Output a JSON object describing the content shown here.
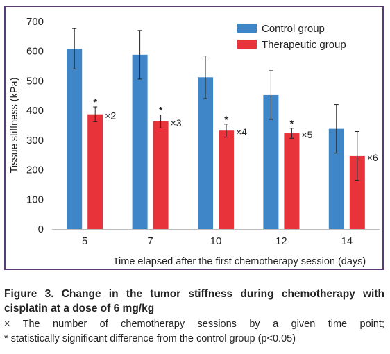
{
  "chart_data": {
    "type": "bar",
    "xlabel": "Time elapsed after the first chemotherapy session (days)",
    "ylabel": "Tissue stiffness (kPa)",
    "ylim": [
      0,
      700
    ],
    "yticks": [
      "0",
      "100",
      "200",
      "300",
      "400",
      "500",
      "600",
      "700"
    ],
    "categories": [
      "5",
      "7",
      "10",
      "12",
      "14"
    ],
    "legend_position": "top-right",
    "grid": false,
    "series": [
      {
        "name": "Control group",
        "color": "#3f86c9",
        "values": [
          608,
          588,
          512,
          452,
          338
        ],
        "errors": [
          68,
          82,
          72,
          82,
          82
        ]
      },
      {
        "name": "Therapeutic group",
        "color": "#e8333a",
        "values": [
          387,
          363,
          332,
          323,
          246
        ],
        "errors": [
          25,
          22,
          22,
          17,
          83
        ],
        "significance": [
          "*",
          "*",
          "*",
          "*",
          ""
        ],
        "annotations": [
          "×2",
          "×3",
          "×4",
          "×5",
          "×6"
        ]
      }
    ]
  },
  "caption": {
    "title": "Figure 3. Change in the tumor stiffness during chemotherapy with cisplatin at a dose of 6 mg/kg",
    "note_line1": "× The number of chemotherapy sessions by a given time point;",
    "note_line2": "* statistically significant difference from the control group (p<0.05)"
  }
}
